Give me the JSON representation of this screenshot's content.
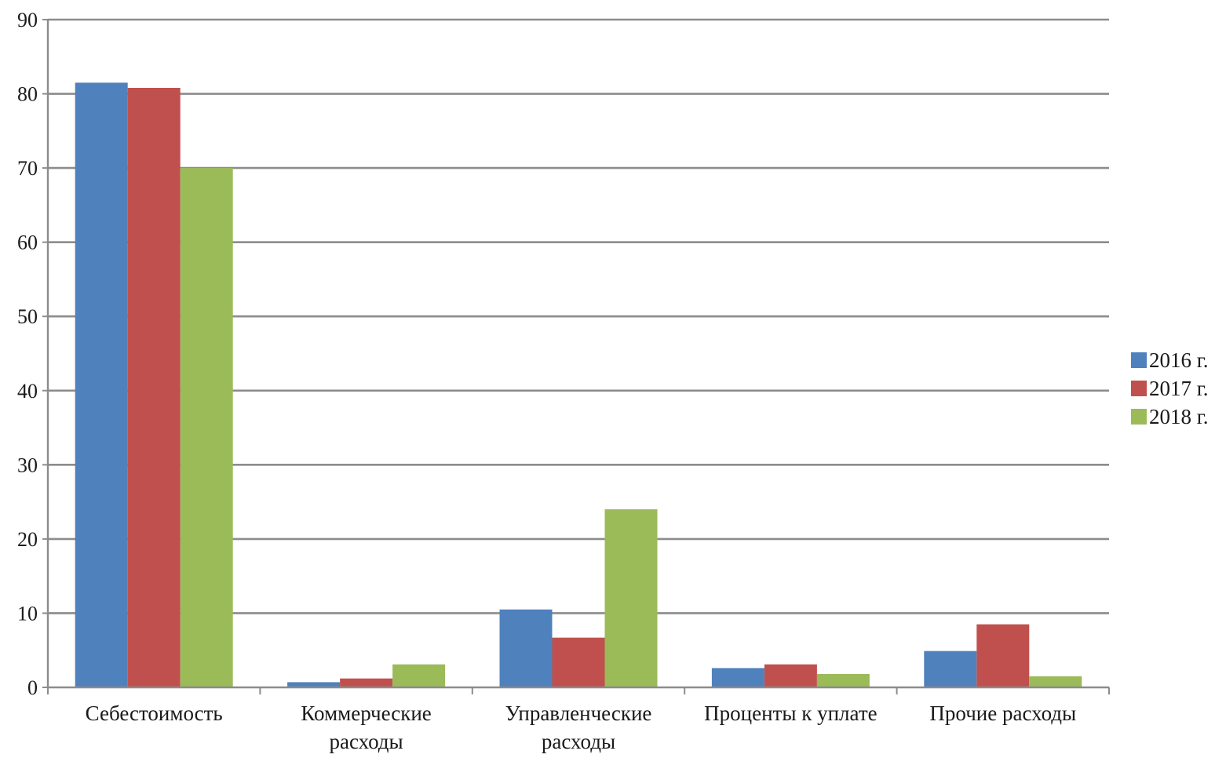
{
  "chart_data": {
    "type": "bar",
    "title": "",
    "xlabel": "",
    "ylabel": "",
    "ylim": [
      0,
      90
    ],
    "yticks": [
      0,
      10,
      20,
      30,
      40,
      50,
      60,
      70,
      80,
      90
    ],
    "grid": true,
    "legend_position": "right",
    "categories": [
      [
        "Себестоимость"
      ],
      [
        "Коммерческие",
        "расходы"
      ],
      [
        "Управленческие",
        "расходы"
      ],
      [
        "Проценты к уплате"
      ],
      [
        "Прочие расходы"
      ]
    ],
    "series": [
      {
        "name": "2016 г.",
        "color": "#4f81bd",
        "values": [
          81.5,
          0.7,
          10.5,
          2.6,
          4.9
        ]
      },
      {
        "name": "2017 г.",
        "color": "#c0504d",
        "values": [
          80.8,
          1.2,
          6.7,
          3.1,
          8.5
        ]
      },
      {
        "name": "2018 г.",
        "color": "#9bbb59",
        "values": [
          70.0,
          3.1,
          24.0,
          1.8,
          1.5
        ]
      }
    ]
  }
}
